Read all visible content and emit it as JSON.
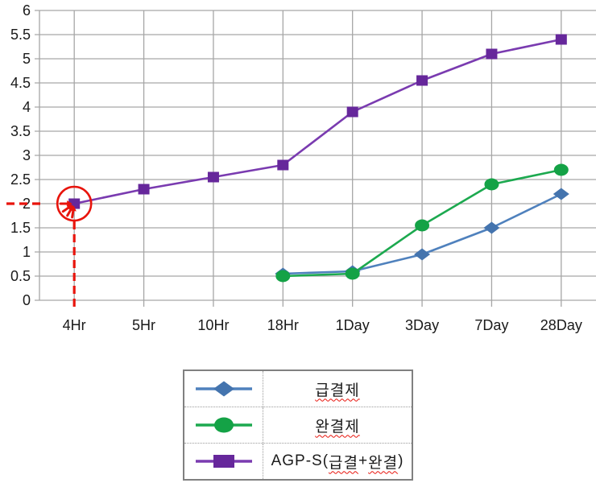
{
  "chart_data": {
    "type": "line",
    "categories": [
      "4Hr",
      "5Hr",
      "10Hr",
      "18Hr",
      "1Day",
      "3Day",
      "7Day",
      "28Day"
    ],
    "series": [
      {
        "name": "급결제",
        "marker": "diamond",
        "color": "#4f81bd",
        "marker_color": "#4474ae",
        "values": [
          null,
          null,
          null,
          0.55,
          0.6,
          0.95,
          1.5,
          2.2
        ]
      },
      {
        "name": "완결제",
        "marker": "circle",
        "color": "#1ca94f",
        "marker_color": "#14a246",
        "values": [
          null,
          null,
          null,
          0.5,
          0.55,
          1.55,
          2.4,
          2.7
        ]
      },
      {
        "name": "AGP-S(급결+완결)",
        "marker": "square",
        "color": "#7a3bb0",
        "marker_color": "#66279b",
        "values": [
          2.0,
          2.3,
          2.55,
          2.8,
          3.9,
          4.55,
          5.1,
          5.4
        ]
      }
    ],
    "ylim": [
      0,
      6
    ],
    "ytick_step": 0.5,
    "yticks": [
      "0",
      "0.5",
      "1",
      "1.5",
      "2",
      "2.5",
      "3",
      "3.5",
      "4",
      "4.5",
      "5",
      "5.5",
      "6"
    ],
    "grid": "both",
    "legend_position": "bottom",
    "annotation": {
      "type": "circle-highlight-with-dashed-guides",
      "target_category": "4Hr",
      "target_series": "AGP-S(급결+완결)",
      "target_value": 2.0,
      "color": "#e8140c"
    }
  },
  "legend": {
    "items": [
      {
        "label": "급결제",
        "parts": [
          {
            "text": "급결제",
            "underline": true
          }
        ]
      },
      {
        "label": "완결제",
        "parts": [
          {
            "text": "완결제",
            "underline": true
          }
        ]
      },
      {
        "label": "AGP-S(급결+완결)",
        "parts": [
          {
            "text": "AGP-S(",
            "underline": false
          },
          {
            "text": "급결",
            "underline": true
          },
          {
            "text": "+",
            "underline": false
          },
          {
            "text": "완결",
            "underline": true
          },
          {
            "text": ")",
            "underline": false
          }
        ]
      }
    ]
  },
  "colors": {
    "grid": "#a6a6a6",
    "tick_text": "#1a1a1a",
    "annotation_red": "#e8140c",
    "legend_border": "#808080",
    "background": "#ffffff"
  }
}
